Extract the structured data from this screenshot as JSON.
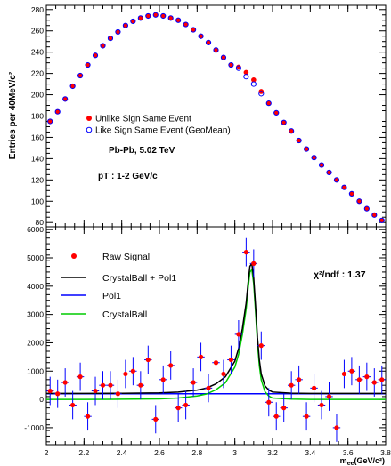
{
  "chart_data": [
    {
      "type": "scatter",
      "ylabel": "Entries per 40MeV/c²",
      "ylim": [
        76,
        284
      ],
      "xlim": [
        2.0,
        3.8
      ],
      "yticks": [
        80,
        100,
        120,
        140,
        160,
        180,
        200,
        220,
        240,
        260,
        280
      ],
      "legend_position": "middle-left",
      "annotations": [
        "Pb-Pb, 5.02 TeV",
        "pT : 1-2 GeV/c"
      ],
      "series": [
        {
          "name": "Unlike Sign Same Event",
          "color": "#ff0000",
          "marker": "filled-circle",
          "x": [
            2.02,
            2.06,
            2.1,
            2.14,
            2.18,
            2.22,
            2.26,
            2.3,
            2.34,
            2.38,
            2.42,
            2.46,
            2.5,
            2.54,
            2.58,
            2.62,
            2.66,
            2.7,
            2.74,
            2.78,
            2.82,
            2.86,
            2.9,
            2.94,
            2.98,
            3.02,
            3.06,
            3.1,
            3.14,
            3.18,
            3.22,
            3.26,
            3.3,
            3.34,
            3.38,
            3.42,
            3.46,
            3.5,
            3.54,
            3.58,
            3.62,
            3.66,
            3.7,
            3.74,
            3.78
          ],
          "y": [
            175,
            184,
            196,
            208,
            218,
            228,
            237,
            246,
            253,
            259,
            265,
            269,
            272,
            274,
            275,
            274,
            272,
            270,
            266,
            261,
            255,
            249,
            242,
            235,
            228,
            226,
            221,
            214,
            203,
            192,
            183,
            174,
            166,
            157,
            149,
            141,
            134,
            127,
            120,
            113,
            107,
            100,
            93,
            87,
            82
          ]
        },
        {
          "name": "Like Sign Same Event (GeoMean)",
          "color": "#0000ff",
          "marker": "open-circle",
          "x": [
            2.02,
            2.06,
            2.1,
            2.14,
            2.18,
            2.22,
            2.26,
            2.3,
            2.34,
            2.38,
            2.42,
            2.46,
            2.5,
            2.54,
            2.58,
            2.62,
            2.66,
            2.7,
            2.74,
            2.78,
            2.82,
            2.86,
            2.9,
            2.94,
            2.98,
            3.02,
            3.06,
            3.1,
            3.14,
            3.18,
            3.22,
            3.26,
            3.3,
            3.34,
            3.38,
            3.42,
            3.46,
            3.5,
            3.54,
            3.58,
            3.62,
            3.66,
            3.7,
            3.74,
            3.78
          ],
          "y": [
            175,
            184,
            196,
            208,
            218,
            228,
            237,
            246,
            253,
            259,
            265,
            269,
            272,
            274,
            275,
            274,
            272,
            270,
            266,
            261,
            255,
            249,
            242,
            235,
            228,
            225,
            217,
            210,
            201,
            192,
            183,
            174,
            166,
            157,
            149,
            141,
            134,
            127,
            120,
            113,
            107,
            100,
            93,
            87,
            82
          ]
        }
      ]
    },
    {
      "type": "scatter",
      "xlabel": "m_ee(GeV/c²)",
      "ylim": [
        -1600,
        6100
      ],
      "xlim": [
        2.0,
        3.8
      ],
      "xticks": [
        2,
        2.2,
        2.4,
        2.6,
        2.8,
        3,
        3.2,
        3.4,
        3.6,
        3.8
      ],
      "yticks": [
        -1000,
        0,
        1000,
        2000,
        3000,
        4000,
        5000,
        6000
      ],
      "legend_position": "top-left",
      "annotations": [
        "χ²/ndf : 1.37"
      ],
      "series": [
        {
          "name": "Raw Signal",
          "color": "#ff0000",
          "marker": "filled-circle-errorbar",
          "error_color": "#0000ff",
          "x": [
            2.02,
            2.06,
            2.1,
            2.14,
            2.18,
            2.22,
            2.26,
            2.3,
            2.34,
            2.38,
            2.42,
            2.46,
            2.5,
            2.54,
            2.58,
            2.62,
            2.66,
            2.7,
            2.74,
            2.78,
            2.82,
            2.86,
            2.9,
            2.94,
            2.98,
            3.02,
            3.06,
            3.1,
            3.14,
            3.18,
            3.22,
            3.26,
            3.3,
            3.34,
            3.38,
            3.42,
            3.46,
            3.5,
            3.54,
            3.58,
            3.62,
            3.66,
            3.7,
            3.74,
            3.78
          ],
          "y": [
            300,
            200,
            600,
            -200,
            800,
            -600,
            300,
            500,
            500,
            200,
            900,
            1000,
            500,
            1400,
            -700,
            700,
            1200,
            -300,
            -200,
            600,
            1500,
            400,
            1300,
            900,
            1400,
            2300,
            5200,
            4800,
            1900,
            -100,
            -600,
            -300,
            500,
            700,
            -600,
            400,
            -200,
            100,
            -1000,
            900,
            1000,
            700,
            800,
            600,
            700
          ],
          "err": [
            500,
            500,
            500,
            500,
            500,
            500,
            500,
            500,
            500,
            500,
            500,
            500,
            500,
            500,
            500,
            500,
            500,
            500,
            500,
            500,
            500,
            500,
            500,
            500,
            500,
            500,
            500,
            500,
            500,
            500,
            500,
            500,
            500,
            500,
            500,
            500,
            500,
            500,
            500,
            500,
            500,
            500,
            500,
            500,
            500
          ]
        },
        {
          "name": "CrystalBall + Pol1",
          "color": "#000000",
          "type": "line",
          "x": [
            2.0,
            2.2,
            2.4,
            2.6,
            2.7,
            2.8,
            2.85,
            2.9,
            2.95,
            3.0,
            3.02,
            3.04,
            3.06,
            3.07,
            3.08,
            3.09,
            3.1,
            3.11,
            3.12,
            3.13,
            3.14,
            3.16,
            3.18,
            3.2,
            3.3,
            3.4,
            3.6,
            3.8
          ],
          "y": [
            210,
            210,
            215,
            230,
            260,
            330,
            400,
            550,
            800,
            1350,
            1800,
            2500,
            3400,
            4100,
            4700,
            4800,
            4300,
            3300,
            2200,
            1400,
            900,
            480,
            330,
            260,
            220,
            210,
            210,
            210
          ]
        },
        {
          "name": "Pol1",
          "color": "#0000ff",
          "type": "line",
          "x": [
            2.0,
            3.8
          ],
          "y": [
            200,
            200
          ]
        },
        {
          "name": "CrystalBall",
          "color": "#00cc00",
          "type": "line",
          "x": [
            2.0,
            2.2,
            2.4,
            2.6,
            2.7,
            2.8,
            2.85,
            2.9,
            2.95,
            3.0,
            3.02,
            3.04,
            3.06,
            3.07,
            3.08,
            3.09,
            3.1,
            3.11,
            3.12,
            3.13,
            3.14,
            3.16,
            3.18,
            3.2,
            3.3,
            3.4,
            3.6,
            3.8
          ],
          "y": [
            0,
            0,
            5,
            20,
            50,
            120,
            190,
            340,
            590,
            1140,
            1590,
            2290,
            3190,
            3890,
            4490,
            4590,
            4090,
            3090,
            1990,
            1190,
            690,
            270,
            120,
            50,
            10,
            0,
            0,
            0
          ]
        }
      ]
    }
  ]
}
